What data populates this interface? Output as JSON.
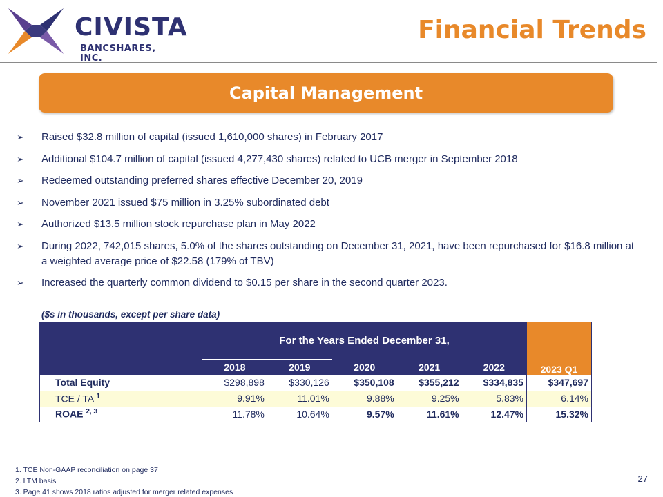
{
  "brand": {
    "name": "CIVISTA",
    "subtitle": "BANCSHARES, INC.",
    "colors": {
      "navy": "#2e3172",
      "orange": "#e8892a",
      "purple": "#5a3f8f"
    }
  },
  "header": {
    "title": "Financial Trends"
  },
  "banner": {
    "label": "Capital Management"
  },
  "bullets": [
    "Raised $32.8 million of capital (issued 1,610,000 shares) in February 2017",
    "Additional $104.7 million of capital (issued 4,277,430 shares) related to UCB merger in September 2018",
    "Redeemed outstanding preferred shares effective December 20, 2019",
    "November 2021 issued $75 million in 3.25% subordinated debt",
    "Authorized $13.5 million stock repurchase plan in May 2022",
    "During 2022, 742,015 shares, 5.0% of the shares outstanding on December 31, 2021, have been repurchased for $16.8 million at a weighted average price of $22.58 (179% of TBV)",
    "Increased the quarterly common dividend to $0.15 per share in the second quarter 2023."
  ],
  "table": {
    "units_note": "($s in thousands, except per share data)",
    "group_header": "For the Years Ended December 31,",
    "columns": [
      "2018",
      "2019",
      "2020",
      "2021",
      "2022",
      "2023 Q1"
    ],
    "rows": [
      {
        "label": "Total Equity",
        "sup": "",
        "values": [
          "$298,898",
          "$330,126",
          "$350,108",
          "$355,212",
          "$334,835",
          "$347,697"
        ]
      },
      {
        "label": "TCE / TA",
        "sup": "1",
        "values": [
          "9.91%",
          "11.01%",
          "9.88%",
          "9.25%",
          "5.83%",
          "6.14%"
        ]
      },
      {
        "label": "ROAE",
        "sup": "2, 3",
        "values": [
          "11.78%",
          "10.64%",
          "9.57%",
          "11.61%",
          "12.47%",
          "15.32%"
        ]
      }
    ]
  },
  "footnotes": [
    "1. TCE Non-GAAP reconciliation on page 37",
    "2. LTM basis",
    "3. Page 41 shows 2018 ratios  adjusted for merger related expenses"
  ],
  "page_number": "27"
}
